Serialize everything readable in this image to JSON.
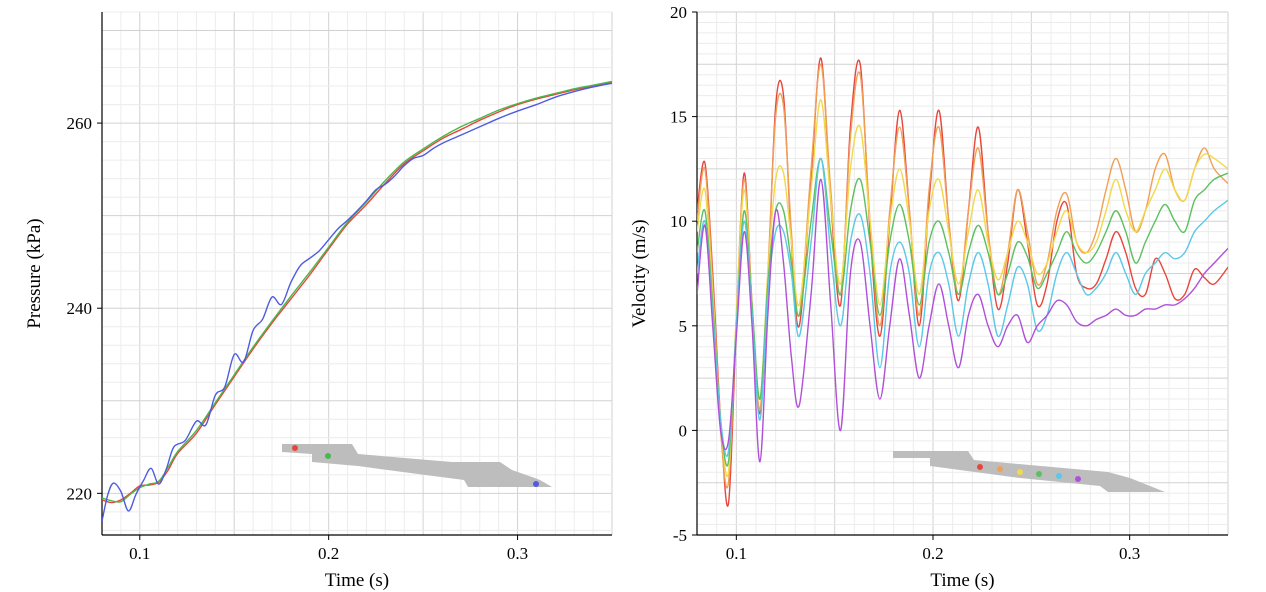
{
  "chart_data": [
    {
      "type": "line",
      "xlabel": "Time (s)",
      "ylabel": "Pressure (kPa)",
      "xlim": [
        0.08,
        0.35
      ],
      "ylim": [
        215.5,
        272
      ],
      "xticks": [
        0.1,
        0.2,
        0.3
      ],
      "yticks": [
        220,
        240,
        260
      ],
      "xtick_labels": [
        "0.1",
        "0.2",
        "0.3"
      ],
      "ytick_labels": [
        "220",
        "240",
        "260"
      ],
      "grid": true,
      "series": [
        {
          "color": "#e8453c",
          "x": [
            0.08,
            0.085,
            0.09,
            0.095,
            0.1,
            0.105,
            0.11,
            0.115,
            0.12,
            0.13,
            0.14,
            0.15,
            0.16,
            0.17,
            0.18,
            0.19,
            0.2,
            0.21,
            0.22,
            0.23,
            0.24,
            0.25,
            0.26,
            0.27,
            0.28,
            0.29,
            0.3,
            0.31,
            0.32,
            0.33,
            0.34,
            0.35
          ],
          "y": [
            219.3,
            219.0,
            219.3,
            220.0,
            220.8,
            220.9,
            221.2,
            222.5,
            224.3,
            226.5,
            229.6,
            232.6,
            235.6,
            238.4,
            241.0,
            243.6,
            246.4,
            249.1,
            251.2,
            253.5,
            255.6,
            257.0,
            258.3,
            259.3,
            260.3,
            261.2,
            262.0,
            262.6,
            263.1,
            263.6,
            264.0,
            264.4
          ]
        },
        {
          "color": "#4ab84a",
          "x": [
            0.08,
            0.085,
            0.09,
            0.095,
            0.1,
            0.105,
            0.11,
            0.115,
            0.12,
            0.13,
            0.14,
            0.15,
            0.16,
            0.17,
            0.18,
            0.19,
            0.2,
            0.21,
            0.22,
            0.23,
            0.24,
            0.25,
            0.26,
            0.27,
            0.28,
            0.29,
            0.3,
            0.31,
            0.32,
            0.33,
            0.34,
            0.35
          ],
          "y": [
            219.5,
            219.2,
            219.1,
            219.9,
            220.6,
            221.0,
            221.3,
            222.8,
            224.5,
            226.8,
            229.8,
            232.8,
            235.8,
            238.6,
            241.3,
            243.9,
            246.6,
            249.3,
            251.5,
            253.8,
            255.8,
            257.2,
            258.5,
            259.6,
            260.5,
            261.4,
            262.1,
            262.7,
            263.2,
            263.7,
            264.1,
            264.5
          ]
        },
        {
          "color": "#4d5ce0",
          "x": [
            0.08,
            0.083,
            0.086,
            0.09,
            0.094,
            0.098,
            0.102,
            0.106,
            0.11,
            0.114,
            0.118,
            0.124,
            0.13,
            0.135,
            0.14,
            0.145,
            0.15,
            0.155,
            0.16,
            0.165,
            0.17,
            0.175,
            0.18,
            0.185,
            0.19,
            0.195,
            0.2,
            0.205,
            0.21,
            0.215,
            0.22,
            0.225,
            0.23,
            0.235,
            0.24,
            0.245,
            0.25,
            0.255,
            0.26,
            0.27,
            0.28,
            0.29,
            0.3,
            0.31,
            0.32,
            0.33,
            0.34,
            0.35
          ],
          "y": [
            217.0,
            219.8,
            221.1,
            220.2,
            218.1,
            219.9,
            221.4,
            222.7,
            221.0,
            222.6,
            225.0,
            225.7,
            227.8,
            227.4,
            230.6,
            231.5,
            235.0,
            234.2,
            237.6,
            238.8,
            241.2,
            240.4,
            242.8,
            244.6,
            245.4,
            246.2,
            247.4,
            248.6,
            249.5,
            250.5,
            251.6,
            252.8,
            253.4,
            254.3,
            255.4,
            256.2,
            256.5,
            257.2,
            257.8,
            258.7,
            259.6,
            260.5,
            261.3,
            262.0,
            262.8,
            263.4,
            263.9,
            264.3
          ]
        }
      ]
    },
    {
      "type": "line",
      "xlabel": "Time (s)",
      "ylabel": "Velocity (m/s)",
      "xlim": [
        0.08,
        0.35
      ],
      "ylim": [
        -5,
        20
      ],
      "xticks": [
        0.1,
        0.2,
        0.3
      ],
      "yticks": [
        -5,
        0,
        5,
        10,
        15,
        20
      ],
      "xtick_labels": [
        "0.1",
        "0.2",
        "0.3"
      ],
      "ytick_labels": [
        "-5",
        "0",
        "5",
        "10",
        "15",
        "20"
      ],
      "grid": true,
      "series": [
        {
          "color": "#e8453c",
          "x": [
            0.08,
            0.084,
            0.088,
            0.092,
            0.096,
            0.1,
            0.104,
            0.108,
            0.112,
            0.116,
            0.12,
            0.124,
            0.128,
            0.132,
            0.138,
            0.143,
            0.148,
            0.153,
            0.158,
            0.163,
            0.168,
            0.173,
            0.178,
            0.183,
            0.188,
            0.193,
            0.198,
            0.203,
            0.208,
            0.213,
            0.218,
            0.223,
            0.228,
            0.233,
            0.238,
            0.243,
            0.248,
            0.253,
            0.258,
            0.263,
            0.268,
            0.273,
            0.278,
            0.283,
            0.288,
            0.293,
            0.298,
            0.303,
            0.308,
            0.313,
            0.318,
            0.323,
            0.328,
            0.333,
            0.338,
            0.343,
            0.35
          ],
          "y": [
            10.5,
            12.8,
            7.5,
            0.5,
            -3.5,
            5.0,
            12.3,
            6.0,
            0.8,
            7.0,
            15.5,
            16.0,
            9.0,
            5.0,
            12.0,
            17.8,
            11.0,
            6.0,
            14.5,
            17.5,
            9.5,
            4.5,
            10.0,
            15.3,
            10.5,
            5.0,
            11.0,
            15.3,
            10.0,
            6.2,
            10.5,
            14.5,
            9.5,
            5.8,
            8.0,
            11.5,
            9.0,
            6.0,
            7.0,
            10.0,
            10.8,
            7.5,
            6.8,
            7.0,
            8.2,
            9.5,
            8.5,
            6.8,
            6.5,
            8.2,
            7.5,
            6.3,
            6.5,
            7.7,
            7.3,
            7.0,
            7.8
          ]
        },
        {
          "color": "#f0a055",
          "x": [
            0.08,
            0.084,
            0.088,
            0.092,
            0.096,
            0.1,
            0.104,
            0.108,
            0.112,
            0.116,
            0.12,
            0.124,
            0.128,
            0.132,
            0.138,
            0.143,
            0.148,
            0.153,
            0.158,
            0.163,
            0.168,
            0.173,
            0.178,
            0.183,
            0.188,
            0.193,
            0.198,
            0.203,
            0.208,
            0.213,
            0.218,
            0.223,
            0.228,
            0.233,
            0.238,
            0.243,
            0.248,
            0.253,
            0.258,
            0.263,
            0.268,
            0.273,
            0.278,
            0.283,
            0.288,
            0.293,
            0.298,
            0.303,
            0.308,
            0.313,
            0.318,
            0.323,
            0.328,
            0.333,
            0.338,
            0.343,
            0.35
          ],
          "y": [
            10.0,
            12.5,
            7.0,
            0.0,
            -2.5,
            5.5,
            12.0,
            6.0,
            1.0,
            7.5,
            15.0,
            15.5,
            9.5,
            5.5,
            12.5,
            17.5,
            11.5,
            6.5,
            14.0,
            17.0,
            10.0,
            5.0,
            10.5,
            14.5,
            10.5,
            5.5,
            11.5,
            14.5,
            10.0,
            6.5,
            10.5,
            13.5,
            9.5,
            6.5,
            8.5,
            11.5,
            9.5,
            7.0,
            8.0,
            10.5,
            11.3,
            9.0,
            8.5,
            9.5,
            11.5,
            13.0,
            11.5,
            9.5,
            10.5,
            12.5,
            13.2,
            11.5,
            11.0,
            12.5,
            13.5,
            12.5,
            11.8
          ]
        },
        {
          "color": "#f2d84a",
          "x": [
            0.08,
            0.084,
            0.088,
            0.092,
            0.096,
            0.1,
            0.104,
            0.108,
            0.112,
            0.116,
            0.12,
            0.124,
            0.128,
            0.132,
            0.138,
            0.143,
            0.148,
            0.153,
            0.158,
            0.163,
            0.168,
            0.173,
            0.178,
            0.183,
            0.188,
            0.193,
            0.198,
            0.203,
            0.208,
            0.213,
            0.218,
            0.223,
            0.228,
            0.233,
            0.238,
            0.243,
            0.248,
            0.253,
            0.258,
            0.263,
            0.268,
            0.273,
            0.278,
            0.283,
            0.288,
            0.293,
            0.298,
            0.303,
            0.308,
            0.313,
            0.318,
            0.323,
            0.328,
            0.333,
            0.338,
            0.343,
            0.35
          ],
          "y": [
            9.5,
            11.5,
            6.5,
            0.5,
            -2.0,
            5.5,
            11.5,
            6.0,
            1.5,
            7.5,
            12.0,
            12.3,
            9.0,
            6.0,
            11.5,
            15.8,
            11.0,
            7.0,
            12.5,
            14.5,
            10.0,
            6.0,
            10.0,
            12.5,
            10.0,
            6.5,
            10.5,
            12.0,
            9.5,
            7.0,
            9.5,
            11.5,
            9.0,
            7.2,
            8.5,
            10.0,
            9.0,
            7.5,
            8.0,
            9.5,
            10.5,
            9.0,
            8.5,
            9.0,
            10.5,
            12.0,
            10.5,
            9.5,
            10.5,
            11.5,
            12.5,
            11.5,
            11.0,
            12.5,
            13.2,
            13.0,
            12.5
          ]
        },
        {
          "color": "#5cc060",
          "x": [
            0.08,
            0.084,
            0.088,
            0.092,
            0.096,
            0.1,
            0.104,
            0.108,
            0.112,
            0.116,
            0.12,
            0.124,
            0.128,
            0.132,
            0.138,
            0.143,
            0.148,
            0.153,
            0.158,
            0.163,
            0.168,
            0.173,
            0.178,
            0.183,
            0.188,
            0.193,
            0.198,
            0.203,
            0.208,
            0.213,
            0.218,
            0.223,
            0.228,
            0.233,
            0.238,
            0.243,
            0.248,
            0.253,
            0.258,
            0.263,
            0.268,
            0.273,
            0.278,
            0.283,
            0.288,
            0.293,
            0.298,
            0.303,
            0.308,
            0.313,
            0.318,
            0.323,
            0.328,
            0.333,
            0.338,
            0.343,
            0.35
          ],
          "y": [
            8.5,
            10.5,
            6.0,
            0.5,
            -1.5,
            5.0,
            10.5,
            6.0,
            1.5,
            7.0,
            10.5,
            10.5,
            8.0,
            5.5,
            10.0,
            13.0,
            9.5,
            6.5,
            10.5,
            12.0,
            9.0,
            5.5,
            9.0,
            10.8,
            9.0,
            6.0,
            9.0,
            10.0,
            8.5,
            6.5,
            8.5,
            9.8,
            8.5,
            6.5,
            7.5,
            9.0,
            8.3,
            6.8,
            7.5,
            8.5,
            9.5,
            8.5,
            8.0,
            8.5,
            9.5,
            10.5,
            9.5,
            8.0,
            9.0,
            10.0,
            10.8,
            10.0,
            9.5,
            11.0,
            11.5,
            12.0,
            12.3
          ]
        },
        {
          "color": "#5ac8e8",
          "x": [
            0.08,
            0.084,
            0.088,
            0.092,
            0.096,
            0.1,
            0.104,
            0.108,
            0.112,
            0.116,
            0.12,
            0.124,
            0.128,
            0.132,
            0.138,
            0.143,
            0.148,
            0.153,
            0.158,
            0.163,
            0.168,
            0.173,
            0.178,
            0.183,
            0.188,
            0.193,
            0.198,
            0.203,
            0.208,
            0.213,
            0.218,
            0.223,
            0.228,
            0.233,
            0.238,
            0.243,
            0.248,
            0.253,
            0.258,
            0.263,
            0.268,
            0.273,
            0.278,
            0.283,
            0.288,
            0.293,
            0.298,
            0.303,
            0.308,
            0.313,
            0.318,
            0.323,
            0.328,
            0.333,
            0.338,
            0.343,
            0.35
          ],
          "y": [
            7.5,
            10.0,
            5.5,
            0.5,
            -1.0,
            5.0,
            10.0,
            5.5,
            0.5,
            6.5,
            9.5,
            9.5,
            7.5,
            4.5,
            9.0,
            13.0,
            8.5,
            5.0,
            9.0,
            10.3,
            7.5,
            3.0,
            7.5,
            9.0,
            7.5,
            4.0,
            7.5,
            8.5,
            7.0,
            4.5,
            7.0,
            8.5,
            7.0,
            4.5,
            6.0,
            7.8,
            7.0,
            4.8,
            5.5,
            7.5,
            8.5,
            7.5,
            6.5,
            6.8,
            7.5,
            8.5,
            7.5,
            6.5,
            7.5,
            8.0,
            8.5,
            8.2,
            8.5,
            9.5,
            10.0,
            10.5,
            11.0
          ]
        },
        {
          "color": "#b050d8",
          "x": [
            0.08,
            0.084,
            0.088,
            0.092,
            0.096,
            0.1,
            0.104,
            0.108,
            0.112,
            0.116,
            0.12,
            0.124,
            0.128,
            0.132,
            0.138,
            0.143,
            0.148,
            0.153,
            0.158,
            0.163,
            0.168,
            0.173,
            0.178,
            0.183,
            0.188,
            0.193,
            0.198,
            0.203,
            0.208,
            0.213,
            0.218,
            0.223,
            0.228,
            0.233,
            0.238,
            0.243,
            0.248,
            0.253,
            0.258,
            0.263,
            0.268,
            0.273,
            0.278,
            0.283,
            0.288,
            0.293,
            0.298,
            0.303,
            0.308,
            0.313,
            0.318,
            0.323,
            0.328,
            0.333,
            0.338,
            0.343,
            0.35
          ],
          "y": [
            6.5,
            9.8,
            5.0,
            0.0,
            -0.5,
            4.5,
            9.5,
            5.0,
            -1.5,
            5.5,
            10.5,
            8.0,
            3.5,
            1.2,
            6.5,
            12.0,
            6.0,
            0.0,
            7.5,
            9.0,
            5.0,
            1.5,
            5.0,
            8.2,
            5.5,
            2.5,
            5.0,
            7.0,
            5.0,
            3.0,
            5.5,
            6.5,
            5.0,
            4.0,
            5.0,
            5.5,
            4.2,
            5.0,
            5.5,
            6.2,
            6.0,
            5.2,
            5.0,
            5.3,
            5.5,
            5.8,
            5.5,
            5.5,
            5.8,
            5.8,
            6.0,
            6.0,
            6.3,
            6.8,
            7.5,
            8.0,
            8.7
          ]
        }
      ]
    }
  ],
  "inset_markers": [
    {
      "label_color": "#e8453c"
    },
    {
      "label_color": "#f0a055"
    },
    {
      "label_color": "#f2d84a"
    },
    {
      "label_color": "#5cc060"
    },
    {
      "label_color": "#5ac8e8"
    },
    {
      "label_color": "#b050d8"
    }
  ],
  "left_inset_markers": [
    {
      "label_color": "#e8453c"
    },
    {
      "label_color": "#4ab84a"
    },
    {
      "label_color": "#4d5ce0"
    }
  ]
}
